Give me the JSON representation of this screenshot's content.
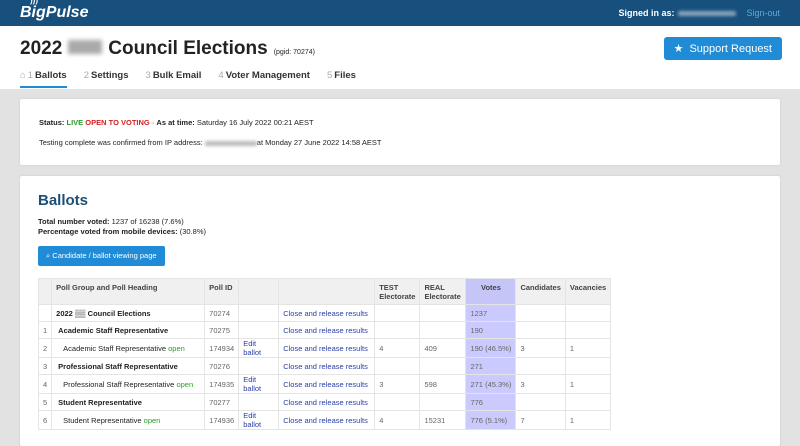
{
  "topbar": {
    "logo": "BigPulse",
    "signed_in_label": "Signed in as:",
    "signout": "Sign-out"
  },
  "header": {
    "title_prefix": "2022",
    "title_suffix": "Council Elections",
    "pgid": "(pgid: 70274)",
    "support_button": "Support Request"
  },
  "tabs": [
    {
      "num": "1",
      "label": "Ballots"
    },
    {
      "num": "2",
      "label": "Settings"
    },
    {
      "num": "3",
      "label": "Bulk Email"
    },
    {
      "num": "4",
      "label": "Voter Management"
    },
    {
      "num": "5",
      "label": "Files"
    }
  ],
  "status": {
    "label": "Status:",
    "live": "LIVE",
    "open": "OPEN TO VOTING",
    "sep": "·",
    "time_label": "As at time:",
    "time_value": "Saturday 16 July 2022 00:21 AEST",
    "testing_prefix": "Testing complete was confirmed from IP address:",
    "testing_suffix": "at Monday 27 June 2022 14:58 AEST"
  },
  "ballots": {
    "title": "Ballots",
    "total_label": "Total number voted:",
    "total_value": "1237 of 16238 (7.6%)",
    "mobile_label": "Percentage voted from mobile devices:",
    "mobile_value": "(30.8%)",
    "view_button": "Candidate / ballot viewing page",
    "headers": [
      "",
      "Poll Group and Poll Heading",
      "Poll ID",
      "",
      "",
      "TEST Electorate",
      "REAL Electorate",
      "Votes",
      "Candidates",
      "Vacancies"
    ],
    "rows": [
      {
        "n": "",
        "heading": "2022 ▒▒ Council Elections",
        "status": "",
        "poll_id": "70274",
        "edit": "",
        "close": "Close and release results",
        "test": "",
        "real": "",
        "votes": "1237",
        "cand": "",
        "vac": ""
      },
      {
        "n": "1",
        "heading": "Academic Staff Representative",
        "status": "",
        "poll_id": "70275",
        "edit": "",
        "close": "Close and release results",
        "test": "",
        "real": "",
        "votes": "190",
        "cand": "",
        "vac": ""
      },
      {
        "n": "2",
        "heading": "Academic Staff Representative",
        "status": "open",
        "poll_id": "174934",
        "edit": "Edit ballot",
        "close": "Close and release results",
        "test": "4",
        "real": "409",
        "votes": "190 (46.5%)",
        "cand": "3",
        "vac": "1"
      },
      {
        "n": "3",
        "heading": "Professional Staff Representative",
        "status": "",
        "poll_id": "70276",
        "edit": "",
        "close": "Close and release results",
        "test": "",
        "real": "",
        "votes": "271",
        "cand": "",
        "vac": ""
      },
      {
        "n": "4",
        "heading": "Professional Staff Representative",
        "status": "open",
        "poll_id": "174935",
        "edit": "Edit ballot",
        "close": "Close and release results",
        "test": "3",
        "real": "598",
        "votes": "271 (45.3%)",
        "cand": "3",
        "vac": "1"
      },
      {
        "n": "5",
        "heading": "Student Representative",
        "status": "",
        "poll_id": "70277",
        "edit": "",
        "close": "Close and release results",
        "test": "",
        "real": "",
        "votes": "776",
        "cand": "",
        "vac": ""
      },
      {
        "n": "6",
        "heading": "Student Representative",
        "status": "open",
        "poll_id": "174936",
        "edit": "Edit ballot",
        "close": "Close and release results",
        "test": "4",
        "real": "15231",
        "votes": "776 (5.1%)",
        "cand": "7",
        "vac": "1"
      }
    ]
  }
}
